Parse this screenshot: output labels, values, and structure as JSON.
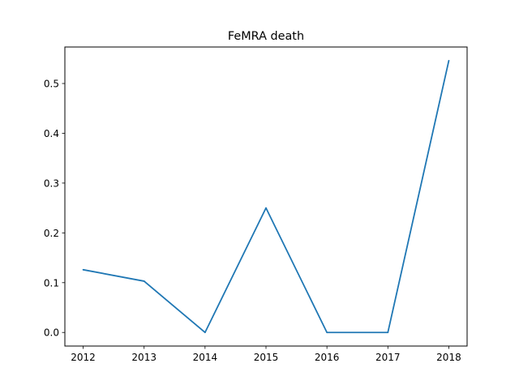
{
  "chart_data": {
    "type": "line",
    "title": "FeMRA death",
    "xlabel": "",
    "ylabel": "",
    "x": [
      2012,
      2013,
      2014,
      2015,
      2016,
      2017,
      2018
    ],
    "series": [
      {
        "values": [
          0.126,
          0.103,
          0.0,
          0.25,
          0.0,
          0.0,
          0.546
        ]
      }
    ],
    "xlim": [
      2011.7,
      2018.3
    ],
    "ylim": [
      -0.0273,
      0.5733
    ],
    "xticks": [
      "2012",
      "2013",
      "2014",
      "2015",
      "2016",
      "2017",
      "2018"
    ],
    "yticks": [
      "0.0",
      "0.1",
      "0.2",
      "0.3",
      "0.4",
      "0.5"
    ],
    "grid": false,
    "legend": "none",
    "line_color": "#1f77b4"
  }
}
